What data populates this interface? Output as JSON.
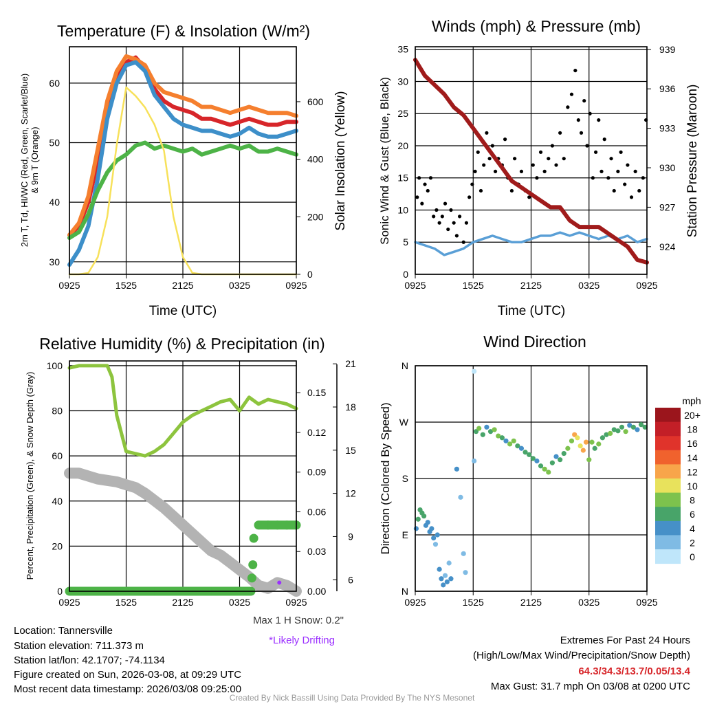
{
  "footer": {
    "location": "Location: Tannersville",
    "elevation": "Station elevation: 711.373 m",
    "latlon": "Station lat/lon: 42.1707; -74.1134",
    "created": "Figure created on Sun, 2026-03-08, at 09:29 UTC",
    "recent": "Most recent data timestamp: 2026/03/08 09:25:00",
    "max_snow": "Max 1 H Snow: 0.2\"",
    "drifting": "*Likely Drifting",
    "extremes_title": "Extremes For Past 24 Hours",
    "extremes_sub": "(High/Low/Max Wind/Precipitation/Snow Depth)",
    "extremes_values": "64.3/34.3/13.7/0.05/13.4",
    "max_gust": "Max Gust: 31.7 mph On 03/08 at 0200 UTC",
    "credit": "Created By Nick Bassill Using Data Provided By The NYS Mesonet"
  },
  "colors": {
    "temp": "#d7262a",
    "temp9m": "#f57f2e",
    "dewpoint": "#4db347",
    "windchill": "#3d8fc9",
    "solar": "#f7e15a",
    "wind": "#5a9fd6",
    "gust": "#000000",
    "pressure": "#a01b1b",
    "rh": "#8dc43e",
    "precip": "#4db347",
    "snow": "#b3b3b3",
    "drift": "#9b30ff",
    "extremes": "#d7262a"
  },
  "chart_data": [
    {
      "type": "line",
      "title": "Temperature (F) & Insolation (W/m²)",
      "xlabel": "Time (UTC)",
      "ylabel": "2m T, Td, HI/WC (Red, Green, Scarlet/Blue)",
      "ylabel2": "& 9m T (Orange)",
      "y2label": "Solar Insolation (Yellow)",
      "xticks": [
        "0925",
        "1525",
        "2125",
        "0325",
        "0925"
      ],
      "xlim_hours": [
        0,
        24
      ],
      "ylim": [
        27.9,
        66.1
      ],
      "yticks": [
        30,
        40,
        50,
        60
      ],
      "y2lim": [
        0,
        791
      ],
      "y2ticks": [
        0,
        200,
        400,
        600
      ],
      "x_hours": [
        0,
        1,
        2,
        3,
        4,
        5,
        6,
        7,
        8,
        9,
        10,
        11,
        12,
        13,
        14,
        15,
        16,
        17,
        18,
        19,
        20,
        21,
        22,
        23,
        24
      ],
      "series": [
        {
          "name": "2m T (Red)",
          "color_key": "temp",
          "axis": "left",
          "values": [
            34.5,
            36,
            40,
            47,
            55,
            61,
            63.5,
            64.3,
            62.5,
            59,
            57,
            56,
            55.5,
            55,
            54,
            54,
            53.5,
            53,
            53.5,
            54,
            53.5,
            53,
            53,
            53.5,
            53.5
          ]
        },
        {
          "name": "9m T (Orange)",
          "color_key": "temp9m",
          "axis": "left",
          "values": [
            34.5,
            36.5,
            41,
            49,
            57,
            62,
            64.5,
            64,
            63,
            60,
            58.5,
            58,
            57.5,
            57,
            56,
            56,
            55.5,
            55,
            55.5,
            56,
            55.5,
            55,
            55,
            55,
            54.5
          ]
        },
        {
          "name": "HI/WC (Blue)",
          "color_key": "windchill",
          "axis": "left",
          "values": [
            29.5,
            32,
            36,
            44,
            54,
            60,
            63,
            63.5,
            62,
            58,
            56,
            54,
            53,
            52.5,
            52,
            52,
            51.5,
            51,
            51.5,
            52.5,
            51.5,
            51,
            51,
            51.5,
            52
          ]
        },
        {
          "name": "Td (Green)",
          "color_key": "dewpoint",
          "axis": "left",
          "values": [
            34,
            35,
            38,
            42,
            45,
            47,
            48,
            49.5,
            50,
            49,
            49.5,
            49,
            48.5,
            49,
            48,
            48.5,
            49,
            49.5,
            49,
            49.5,
            48.5,
            48.5,
            49,
            48.5,
            48
          ]
        },
        {
          "name": "Solar Insolation (Yellow)",
          "color_key": "solar",
          "axis": "right",
          "values": [
            0,
            0,
            5,
            60,
            200,
            450,
            650,
            620,
            580,
            520,
            430,
            200,
            60,
            5,
            0,
            0,
            0,
            0,
            0,
            0,
            0,
            0,
            0,
            0,
            0
          ]
        }
      ]
    },
    {
      "type": "line",
      "title": "Winds (mph) & Pressure (mb)",
      "xlabel": "Time (UTC)",
      "ylabel": "Sonic Wind & Gust (Blue, Black)",
      "y2label": "Station Pressure (Maroon)",
      "xticks": [
        "0925",
        "1525",
        "2125",
        "0325",
        "0925"
      ],
      "xlim_hours": [
        0,
        24
      ],
      "ylim": [
        0,
        35.4
      ],
      "yticks": [
        0,
        5,
        10,
        15,
        20,
        25,
        30,
        35
      ],
      "y2lim": [
        921.9,
        939.2
      ],
      "y2ticks": [
        924,
        927,
        930,
        933,
        936,
        939
      ],
      "x_hours": [
        0,
        1,
        2,
        3,
        4,
        5,
        6,
        7,
        8,
        9,
        10,
        11,
        12,
        13,
        14,
        15,
        16,
        17,
        18,
        19,
        20,
        21,
        22,
        23,
        24
      ],
      "wind": [
        5,
        4.5,
        4,
        3,
        3.5,
        4,
        5,
        5.5,
        6,
        5.5,
        5,
        5,
        5.5,
        6,
        6,
        6.5,
        6,
        6.5,
        6,
        5.5,
        6,
        5.5,
        6,
        5,
        5.5
      ],
      "pressure": [
        938.2,
        937,
        936.3,
        935.6,
        934.6,
        934,
        933,
        932,
        931,
        930,
        929,
        928.5,
        928,
        927.5,
        927,
        927,
        926,
        925.5,
        925.5,
        925.5,
        925,
        924.5,
        924,
        923,
        922.8
      ],
      "gusts": [
        [
          0.2,
          12
        ],
        [
          0.4,
          15
        ],
        [
          0.7,
          11
        ],
        [
          1,
          14
        ],
        [
          1.3,
          13
        ],
        [
          1.6,
          15
        ],
        [
          1.9,
          9
        ],
        [
          2.2,
          10
        ],
        [
          2.5,
          8
        ],
        [
          2.8,
          9
        ],
        [
          3.1,
          11
        ],
        [
          3.4,
          7
        ],
        [
          3.7,
          10
        ],
        [
          4,
          8
        ],
        [
          4.3,
          6
        ],
        [
          4.6,
          9
        ],
        [
          5,
          5
        ],
        [
          5.3,
          8
        ],
        [
          5.6,
          12
        ],
        [
          5.9,
          14
        ],
        [
          6.2,
          16
        ],
        [
          6.5,
          19
        ],
        [
          6.8,
          13
        ],
        [
          7.1,
          17
        ],
        [
          7.4,
          22
        ],
        [
          7.7,
          18
        ],
        [
          8,
          20
        ],
        [
          8.3,
          16
        ],
        [
          8.6,
          18
        ],
        [
          9,
          17
        ],
        [
          9.3,
          21
        ],
        [
          9.6,
          15
        ],
        [
          10,
          13
        ],
        [
          10.3,
          18
        ],
        [
          10.7,
          14
        ],
        [
          11,
          16
        ],
        [
          11.4,
          13
        ],
        [
          11.8,
          12
        ],
        [
          12.2,
          17
        ],
        [
          12.6,
          15
        ],
        [
          13,
          19
        ],
        [
          13.4,
          16
        ],
        [
          13.8,
          18
        ],
        [
          14.2,
          20
        ],
        [
          14.6,
          17
        ],
        [
          15,
          22
        ],
        [
          15.4,
          18
        ],
        [
          15.8,
          26
        ],
        [
          16.2,
          28
        ],
        [
          16.58,
          31.7
        ],
        [
          16.9,
          24
        ],
        [
          17.2,
          22
        ],
        [
          17.5,
          27
        ],
        [
          17.8,
          20
        ],
        [
          18.1,
          25
        ],
        [
          18.4,
          15
        ],
        [
          18.7,
          19
        ],
        [
          19,
          24
        ],
        [
          19.3,
          16
        ],
        [
          19.6,
          21
        ],
        [
          20,
          15
        ],
        [
          20.3,
          18
        ],
        [
          20.6,
          13
        ],
        [
          21,
          16
        ],
        [
          21.3,
          19
        ],
        [
          21.7,
          14
        ],
        [
          22,
          17
        ],
        [
          22.4,
          12
        ],
        [
          22.8,
          16
        ],
        [
          23.2,
          13
        ],
        [
          23.6,
          15
        ],
        [
          23.9,
          24
        ]
      ]
    },
    {
      "type": "line",
      "title": "Relative Humidity (%) & Precipitation (in)",
      "ylabel": "Percent, Precipitation (Green), & Snow Depth (Gray)",
      "xticks": [
        "0925",
        "1525",
        "2125",
        "0325",
        "0925"
      ],
      "xlim_hours": [
        0,
        24
      ],
      "ylim": [
        0,
        100
      ],
      "yticks": [
        0,
        20,
        40,
        60,
        80,
        100
      ],
      "y2lim": [
        0,
        0.174
      ],
      "y2ticks": [
        "0.00",
        "0.03",
        "0.06",
        "0.09",
        "0.12",
        "0.15"
      ],
      "y3lim": [
        5.2,
        21
      ],
      "y3ticks": [
        6,
        9,
        12,
        15,
        18,
        21
      ],
      "rh": {
        "x_hours": [
          0,
          1,
          2,
          3,
          4,
          4.5,
          5,
          6,
          7,
          8,
          9,
          10,
          11,
          12,
          13,
          14,
          15,
          16,
          17,
          18,
          19,
          20,
          21,
          22,
          23,
          24
        ],
        "values": [
          99,
          100,
          100,
          100,
          100,
          95,
          78,
          62,
          61,
          60,
          62,
          65,
          70,
          75,
          78,
          80,
          82,
          84,
          85,
          80,
          86,
          83,
          85,
          84,
          83,
          81
        ]
      },
      "snow_depth": {
        "x_hours": [
          0,
          1,
          2,
          3,
          4,
          5,
          6,
          7,
          8,
          9,
          10,
          11,
          12,
          13,
          14,
          15,
          16,
          17,
          18,
          19,
          20,
          21,
          22,
          23,
          24
        ],
        "values": [
          13.4,
          13.4,
          13.2,
          13,
          12.9,
          12.8,
          12.6,
          12.4,
          12,
          11.5,
          11,
          10.4,
          9.8,
          9.2,
          8.6,
          8,
          7.7,
          7.2,
          6.7,
          6.2,
          5.6,
          5.4,
          5.8,
          5.6,
          5.2
        ]
      },
      "precip": {
        "x_hours": [
          0,
          3,
          6,
          9,
          12,
          15,
          17,
          18,
          19.2,
          19.3,
          19.4,
          19.5,
          20,
          21,
          22,
          23,
          24
        ],
        "values": [
          0,
          0,
          0,
          0,
          0,
          0,
          0,
          0,
          0,
          0.01,
          0.02,
          0.04,
          0.05,
          0.05,
          0.05,
          0.05,
          0.05
        ]
      },
      "drifting_points": [
        [
          22.2,
          5.8
        ]
      ]
    },
    {
      "type": "scatter",
      "title": "Wind Direction",
      "ylabel": "Direction (Colored By Speed)",
      "xticks": [
        "0925",
        "1525",
        "2125",
        "0325",
        "0925"
      ],
      "xlim_hours": [
        0,
        24
      ],
      "ylim": [
        0,
        360
      ],
      "yticks": [
        "N",
        "E",
        "S",
        "W",
        "N"
      ],
      "colorbar": {
        "unit": "mph",
        "labels": [
          "20+",
          "18",
          "16",
          "14",
          "12",
          "10",
          "8",
          "6",
          "4",
          "2",
          "0"
        ],
        "colors": [
          "#9b151c",
          "#c31f27",
          "#e0332b",
          "#f0622d",
          "#f8a54a",
          "#e8e25c",
          "#7dc24d",
          "#48a469",
          "#4690c8",
          "#7fbbe4",
          "#bfe6fa"
        ]
      },
      "points": [
        [
          0.1,
          100,
          5
        ],
        [
          0.3,
          115,
          7
        ],
        [
          0.5,
          130,
          7
        ],
        [
          0.7,
          125,
          6
        ],
        [
          0.9,
          120,
          6
        ],
        [
          1.1,
          105,
          5
        ],
        [
          1.3,
          110,
          4
        ],
        [
          1.5,
          95,
          4
        ],
        [
          1.7,
          100,
          5
        ],
        [
          1.9,
          85,
          4
        ],
        [
          2.1,
          75,
          3
        ],
        [
          2.3,
          90,
          5
        ],
        [
          2.5,
          35,
          4
        ],
        [
          2.7,
          20,
          4
        ],
        [
          2.9,
          10,
          5
        ],
        [
          3.1,
          25,
          3
        ],
        [
          3.3,
          15,
          4
        ],
        [
          3.5,
          45,
          3
        ],
        [
          3.7,
          20,
          4
        ],
        [
          4.3,
          195,
          4
        ],
        [
          4.7,
          150,
          2
        ],
        [
          5,
          60,
          2
        ],
        [
          5.2,
          30,
          3
        ],
        [
          6.1,
          351,
          1
        ],
        [
          6.1,
          208,
          2
        ],
        [
          6.3,
          255,
          6
        ],
        [
          6.6,
          260,
          8
        ],
        [
          7,
          250,
          7
        ],
        [
          7.4,
          262,
          5
        ],
        [
          7.8,
          255,
          7
        ],
        [
          8.2,
          258,
          8
        ],
        [
          8.6,
          248,
          8
        ],
        [
          9,
          245,
          7
        ],
        [
          9.4,
          240,
          5
        ],
        [
          9.8,
          235,
          8
        ],
        [
          10.2,
          240,
          9
        ],
        [
          10.6,
          232,
          7
        ],
        [
          11,
          228,
          4
        ],
        [
          11.4,
          222,
          6
        ],
        [
          11.8,
          218,
          7
        ],
        [
          12.2,
          212,
          6
        ],
        [
          12.6,
          208,
          5
        ],
        [
          13,
          200,
          7
        ],
        [
          13.4,
          195,
          8
        ],
        [
          13.8,
          190,
          8
        ],
        [
          14.2,
          205,
          6
        ],
        [
          14.6,
          215,
          5
        ],
        [
          15,
          210,
          7
        ],
        [
          15.4,
          220,
          7
        ],
        [
          15.8,
          228,
          8
        ],
        [
          16.2,
          240,
          9
        ],
        [
          16.5,
          250,
          13
        ],
        [
          16.8,
          245,
          11
        ],
        [
          17.1,
          232,
          11
        ],
        [
          17.4,
          225,
          12
        ],
        [
          17.7,
          238,
          12
        ],
        [
          18,
          210,
          9
        ],
        [
          18.3,
          238,
          8
        ],
        [
          18.6,
          228,
          7
        ],
        [
          19,
          235,
          8
        ],
        [
          19.4,
          245,
          7
        ],
        [
          19.8,
          250,
          6
        ],
        [
          20.2,
          252,
          8
        ],
        [
          20.6,
          258,
          6
        ],
        [
          21,
          256,
          7
        ],
        [
          21.4,
          262,
          6
        ],
        [
          21.8,
          255,
          8
        ],
        [
          22.2,
          265,
          5
        ],
        [
          22.6,
          262,
          7
        ],
        [
          23,
          258,
          5
        ],
        [
          23.4,
          266,
          6
        ],
        [
          23.8,
          262,
          7
        ]
      ]
    }
  ]
}
